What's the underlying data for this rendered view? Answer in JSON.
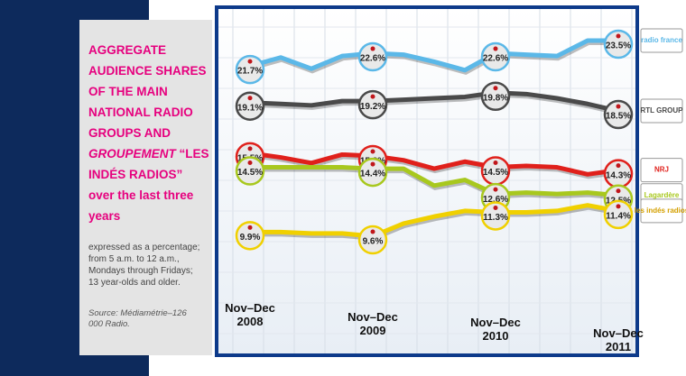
{
  "chart_data": {
    "type": "line",
    "title_parts": [
      "AGGREGATE AUDIENCE SHARES OF THE MAIN NATIONAL RADIO GROUPS AND ",
      "GROUPEMENT",
      " “LES INDÉS RADIOS” over the last three years"
    ],
    "note": "expressed as a percentage; from 5 a.m. to 12 a.m., Mondays through Fridays; 13 year-olds and older.",
    "source": "Source: Médiamétrie–126 000 Radio.",
    "categories": [
      "Nov–Dec 2008",
      null,
      null,
      null,
      "Nov–Dec 2009",
      null,
      null,
      null,
      "Nov–Dec 2010",
      null,
      null,
      null,
      "Nov–Dec 2011"
    ],
    "series": [
      {
        "name": "radio france",
        "color": "#5bb8e8",
        "values": [
          21.7,
          22.3,
          21.5,
          22.4,
          22.6,
          22.5,
          22.0,
          21.4,
          22.6,
          22.5,
          22.4,
          23.5,
          23.5
        ],
        "value_labels": [
          "21.7%",
          null,
          null,
          null,
          "22.6%",
          null,
          null,
          null,
          "22.6%",
          null,
          null,
          null,
          "23.5%"
        ]
      },
      {
        "name": "RTL GROUP",
        "color": "#4a4a4a",
        "values": [
          19.1,
          19.0,
          18.9,
          19.2,
          19.2,
          19.3,
          19.4,
          19.5,
          19.8,
          19.7,
          19.4,
          19.0,
          18.5
        ],
        "value_labels": [
          "19.1%",
          null,
          null,
          null,
          "19.2%",
          null,
          null,
          null,
          "19.8%",
          null,
          null,
          null,
          "18.5%"
        ]
      },
      {
        "name": "NRJ",
        "color": "#e0201b",
        "values": [
          15.5,
          15.2,
          14.8,
          15.4,
          15.3,
          15.0,
          14.4,
          14.9,
          14.5,
          14.6,
          14.5,
          14.0,
          14.3
        ],
        "value_labels": [
          "15.5%",
          null,
          null,
          null,
          "15.3%",
          null,
          null,
          null,
          "14.5%",
          null,
          null,
          null,
          "14.3%"
        ]
      },
      {
        "name": "Lagardère",
        "color": "#a8c81e",
        "values": [
          14.5,
          14.5,
          14.5,
          14.5,
          14.4,
          14.4,
          13.2,
          13.6,
          12.6,
          12.7,
          12.6,
          12.7,
          12.5
        ],
        "value_labels": [
          "14.5%",
          null,
          null,
          null,
          "14.4%",
          null,
          null,
          null,
          "12.6%",
          null,
          null,
          null,
          "12.5%"
        ]
      },
      {
        "name": "les indés radios",
        "color": "#f0d000",
        "values": [
          9.9,
          9.9,
          9.8,
          9.8,
          9.6,
          10.5,
          11.0,
          11.4,
          11.3,
          11.3,
          11.4,
          11.8,
          11.4
        ],
        "value_labels": [
          "9.9%",
          null,
          null,
          null,
          "9.6%",
          null,
          null,
          null,
          "11.3%",
          null,
          null,
          null,
          "11.4%"
        ]
      }
    ]
  }
}
